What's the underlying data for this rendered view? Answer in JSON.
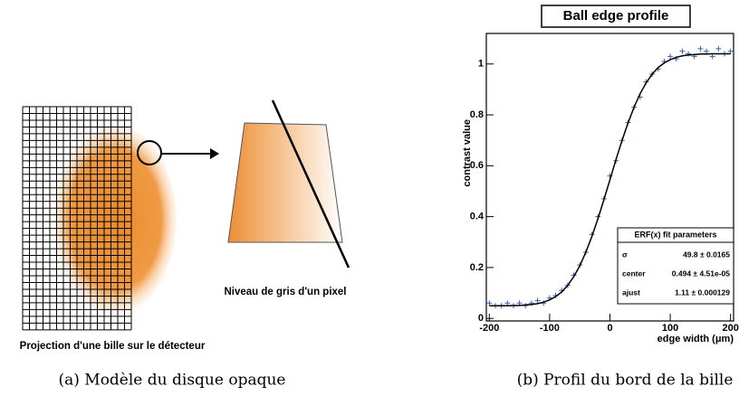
{
  "diagram": {
    "pixel_label": "Niveau de gris d'un pixel",
    "detector_label": "Projection d'une bille sur le détecteur",
    "caption": "(a) Modèle du disque opaque"
  },
  "chart_data": {
    "type": "scatter",
    "title": "Ball edge profile",
    "caption": "(b) Profil du bord de la bille",
    "xlabel": "edge width (μm)",
    "ylabel": "contrast value",
    "x": [
      -200,
      -190,
      -180,
      -170,
      -160,
      -150,
      -140,
      -130,
      -120,
      -110,
      -100,
      -90,
      -80,
      -70,
      -60,
      -50,
      -40,
      -30,
      -20,
      -10,
      0,
      10,
      20,
      30,
      40,
      50,
      60,
      70,
      80,
      90,
      100,
      110,
      120,
      130,
      140,
      150,
      160,
      170,
      180,
      190,
      200
    ],
    "series": [
      {
        "name": "data",
        "color": "#3a5fb0",
        "marker": "plus",
        "values": [
          0.06,
          0.05,
          0.05,
          0.06,
          0.05,
          0.06,
          0.05,
          0.06,
          0.07,
          0.06,
          0.08,
          0.09,
          0.11,
          0.13,
          0.17,
          0.21,
          0.26,
          0.33,
          0.4,
          0.47,
          0.56,
          0.62,
          0.7,
          0.77,
          0.83,
          0.87,
          0.93,
          0.96,
          0.98,
          1.01,
          1.03,
          1.02,
          1.05,
          1.04,
          1.03,
          1.06,
          1.05,
          1.03,
          1.06,
          1.04,
          1.05
        ]
      },
      {
        "name": "fit",
        "color": "#000000",
        "marker": "line",
        "values": [
          0.05,
          0.05,
          0.05,
          0.05,
          0.051,
          0.051,
          0.053,
          0.055,
          0.058,
          0.064,
          0.073,
          0.086,
          0.104,
          0.13,
          0.164,
          0.207,
          0.26,
          0.322,
          0.391,
          0.467,
          0.545,
          0.624,
          0.699,
          0.768,
          0.83,
          0.883,
          0.926,
          0.96,
          0.986,
          1.004,
          1.017,
          1.026,
          1.032,
          1.035,
          1.037,
          1.039,
          1.039,
          1.04,
          1.04,
          1.04,
          1.04
        ]
      }
    ],
    "xlim": [
      -205,
      205
    ],
    "xticks": [
      -200,
      -100,
      0,
      100,
      200
    ],
    "ylim": [
      -0.01,
      1.12
    ],
    "yticks": [
      0,
      0.2,
      0.4,
      0.6,
      0.8,
      1
    ],
    "stats_box": {
      "title": "ERF(x) fit parameters",
      "rows": [
        [
          "σ",
          "49.8 ±  0.0165"
        ],
        [
          "center",
          "0.494 ± 4.51e-05"
        ],
        [
          "ajust",
          "1.11 ± 0.000129"
        ]
      ]
    }
  }
}
